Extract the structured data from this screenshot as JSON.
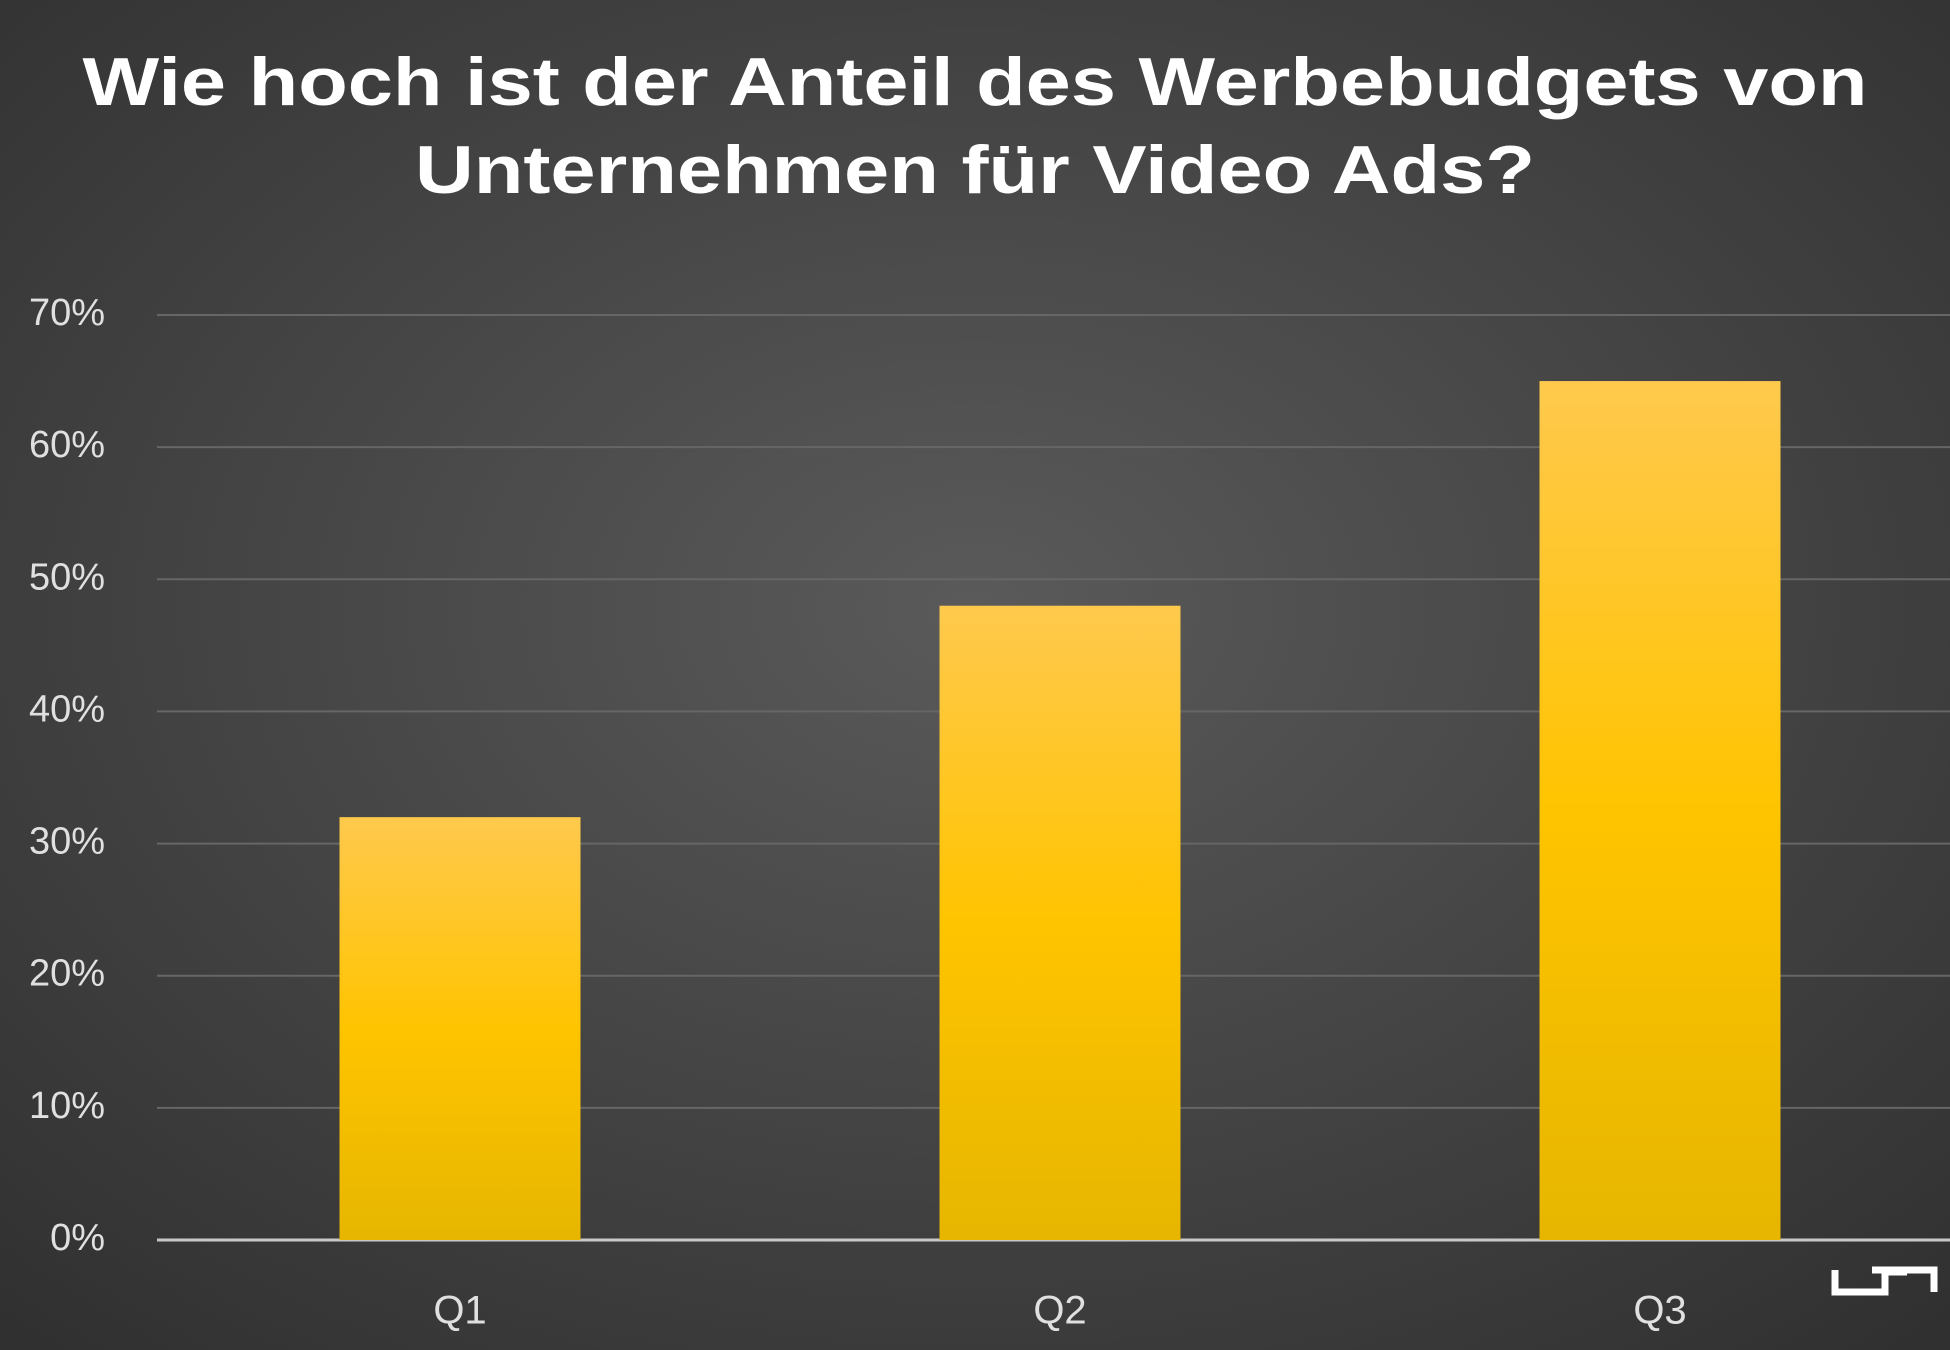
{
  "chart_data": {
    "type": "bar",
    "title": [
      "Wie hoch ist der Anteil des Werbebudgets von",
      "Unternehmen für Video Ads?"
    ],
    "categories": [
      "Q1",
      "Q2",
      "Q3"
    ],
    "values": [
      32,
      48,
      65
    ],
    "color": "#ffc400",
    "ylim": [
      0,
      70
    ],
    "yticks": [
      {
        "value": 0,
        "label": "0%"
      },
      {
        "value": 10,
        "label": "10%"
      },
      {
        "value": 20,
        "label": "20%"
      },
      {
        "value": 30,
        "label": "30%"
      },
      {
        "value": 40,
        "label": "40%"
      },
      {
        "value": 50,
        "label": "50%"
      },
      {
        "value": 60,
        "label": "60%"
      },
      {
        "value": 70,
        "label": "70%"
      }
    ],
    "grid": true
  }
}
